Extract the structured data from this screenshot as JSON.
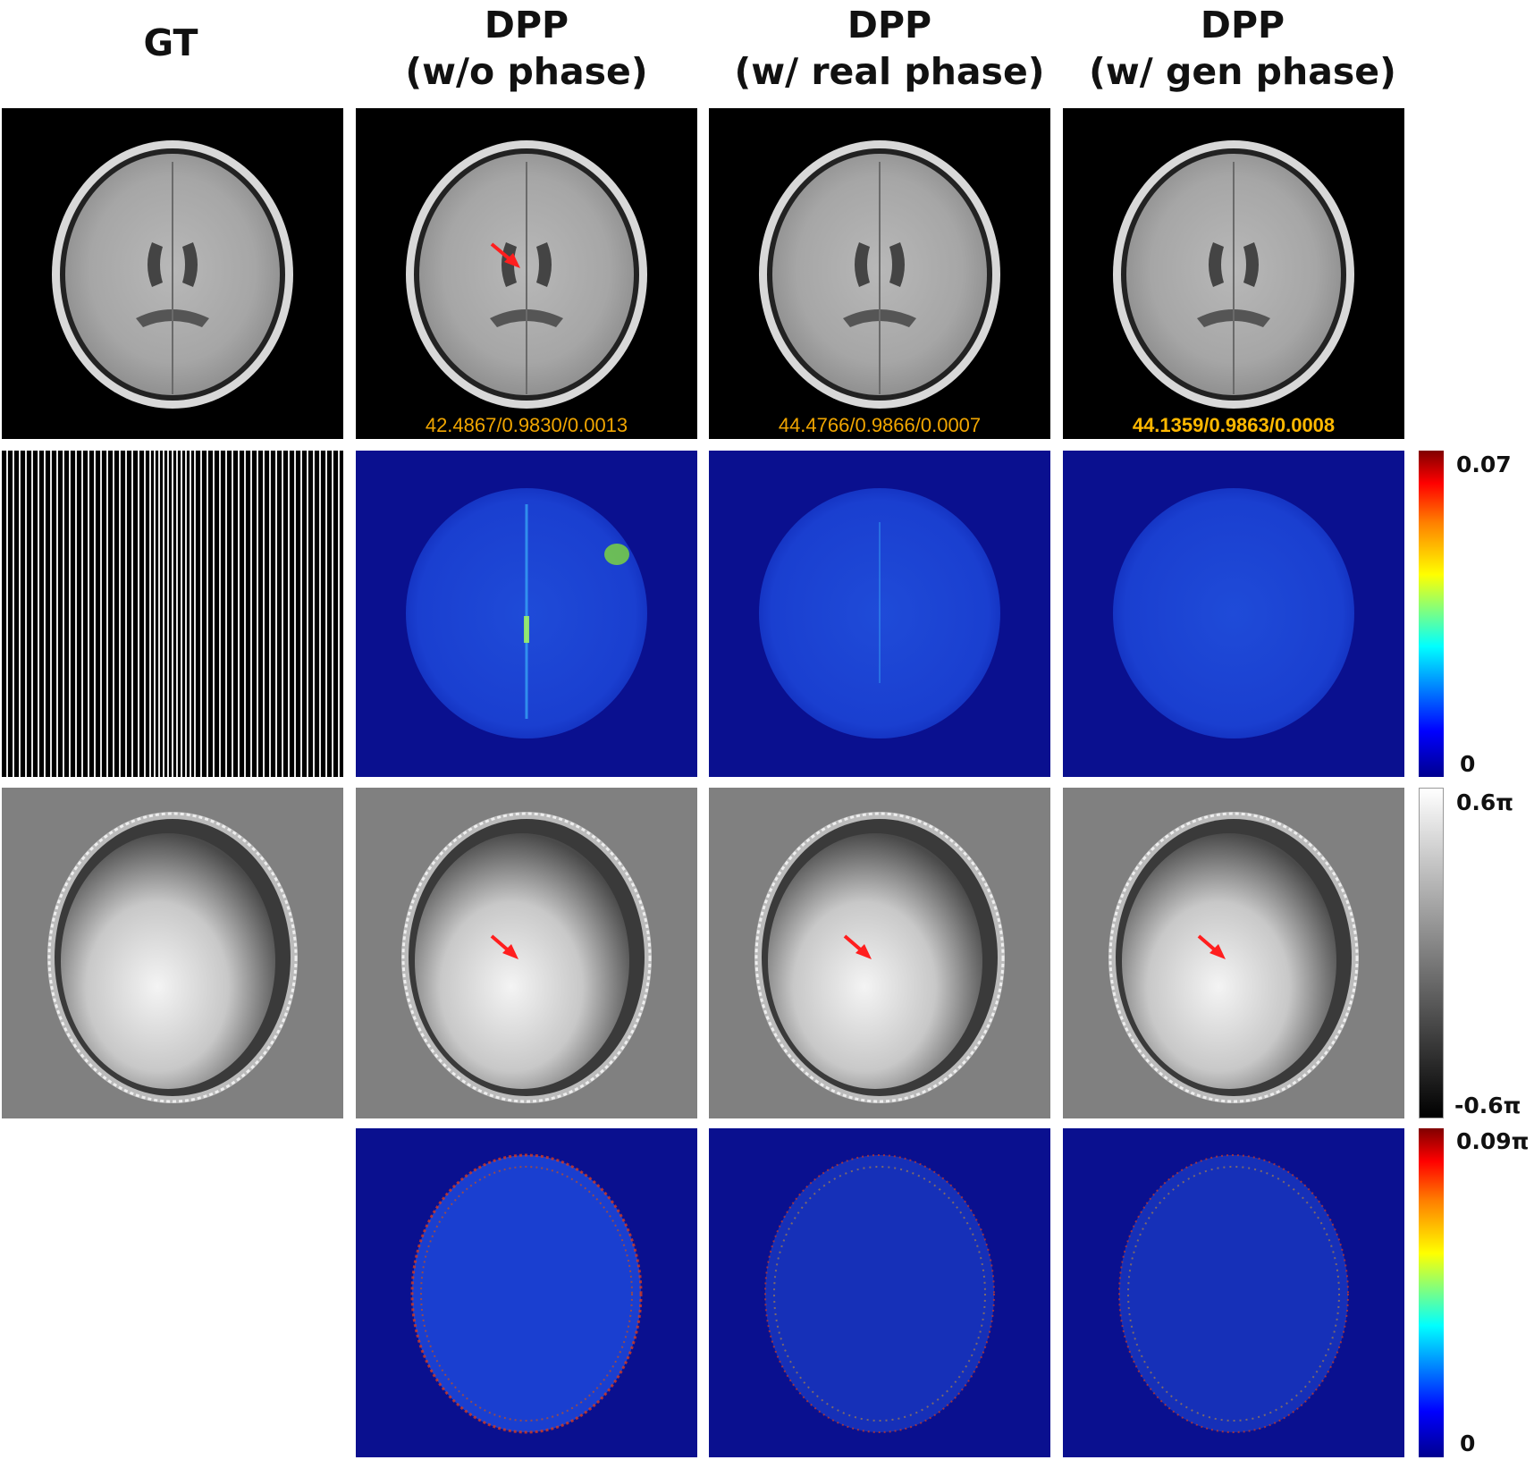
{
  "columns": [
    {
      "title": "GT",
      "subtitle": ""
    },
    {
      "title": "DPP",
      "subtitle": "(w/o phase)"
    },
    {
      "title": "DPP",
      "subtitle": "(w/ real phase)"
    },
    {
      "title": "DPP",
      "subtitle": "(w/ gen phase)"
    }
  ],
  "metrics": [
    "42.4867/0.9830/0.0013",
    "44.4766/0.9866/0.0007",
    "44.1359/0.9863/0.0008"
  ],
  "colorbars": {
    "magnitude_error": {
      "max": "0.07",
      "min": "0"
    },
    "phase": {
      "max": "0.6π",
      "min": "-0.6π"
    },
    "phase_error": {
      "max": "0.09π",
      "min": "0"
    }
  },
  "colors": {
    "metric_text": "#f0a500",
    "arrow": "#ff1e1e",
    "error_bg": "#0a108f",
    "phase_bg": "#808080"
  }
}
